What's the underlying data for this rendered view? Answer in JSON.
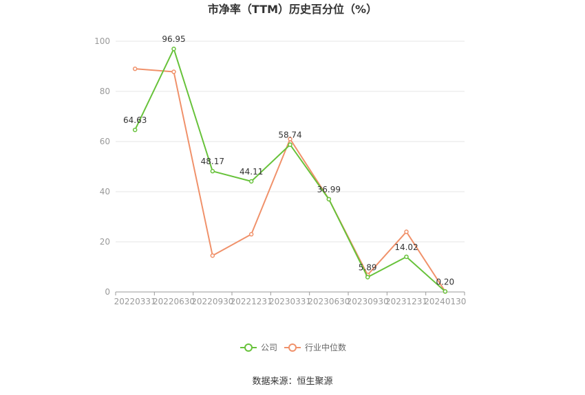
{
  "chart_data": {
    "type": "line",
    "title": "市净率（TTM）历史百分位（%）",
    "xlabel": "",
    "ylabel": "",
    "categories": [
      "20220331",
      "20220630",
      "20220930",
      "20221231",
      "20230331",
      "20230630",
      "20230930",
      "20231231",
      "20240130"
    ],
    "ylim": [
      0,
      100
    ],
    "yticks": [
      0,
      20,
      40,
      60,
      80,
      100
    ],
    "grid": true,
    "legend_position": "bottom",
    "series": [
      {
        "name": "公司",
        "color": "#67c23a",
        "values": [
          64.63,
          96.95,
          48.17,
          44.11,
          58.74,
          36.99,
          5.89,
          14.02,
          0.2
        ],
        "labels": [
          "64.63",
          "96.95",
          "48.17",
          "44.11",
          "58.74",
          "36.99",
          "5.89",
          "14.02",
          "0.20"
        ]
      },
      {
        "name": "行业中位数",
        "color": "#f0916a",
        "values": [
          89.0,
          87.8,
          14.5,
          23.0,
          61.0,
          37.0,
          6.8,
          24.0,
          0.2
        ]
      }
    ],
    "source": "数据来源：恒生聚源"
  }
}
